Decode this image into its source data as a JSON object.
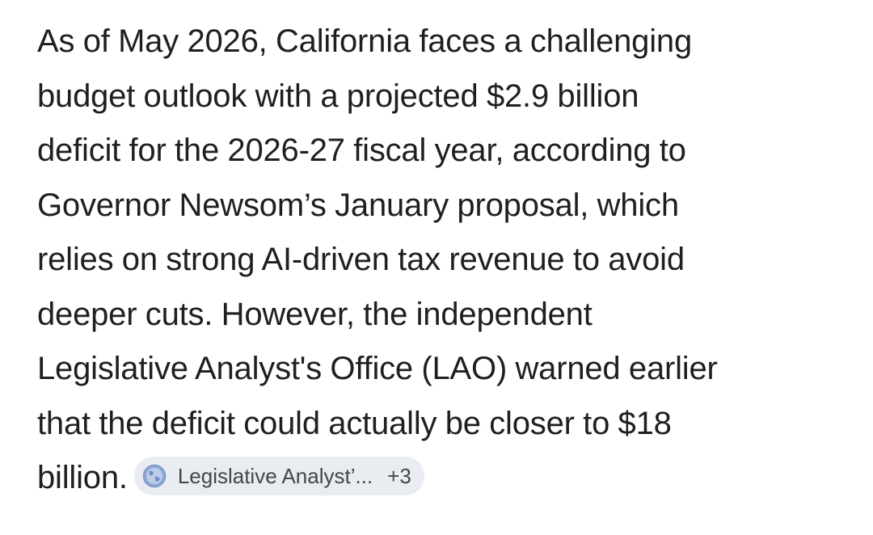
{
  "response": {
    "lines": [
      {
        "before": "As of May 2026, California faces a ",
        "link": "challenging",
        "after": ""
      },
      {
        "before": "",
        "link": "budget outlook",
        "after": " with a projected $2.9 billion"
      },
      {
        "before": "deficit for the 2026-27 fiscal year, according to",
        "link": "",
        "after": ""
      },
      {
        "before": "Governor Newsom’s January proposal, which",
        "link": "",
        "after": ""
      },
      {
        "before": "relies on strong AI-driven tax revenue to avoid",
        "link": "",
        "after": ""
      },
      {
        "before": "deeper cuts. However, the independent",
        "link": "",
        "after": ""
      },
      {
        "before": "",
        "link": "Legislative Analyst's Office (LAO)",
        "after": " warned earlier"
      },
      {
        "before": "that the deficit could actually be closer to $18",
        "link": "",
        "after": ""
      },
      {
        "before": "billion.",
        "link": "",
        "after": ""
      }
    ]
  },
  "source_chip": {
    "label": "Legislative Analyst’...",
    "count": "+3",
    "icon": "globe-icon"
  },
  "colors": {
    "text": "#1f1f1f",
    "chip_background": "#e9ecf1",
    "chip_text": "#444746",
    "globe": "#8fa8d6"
  }
}
